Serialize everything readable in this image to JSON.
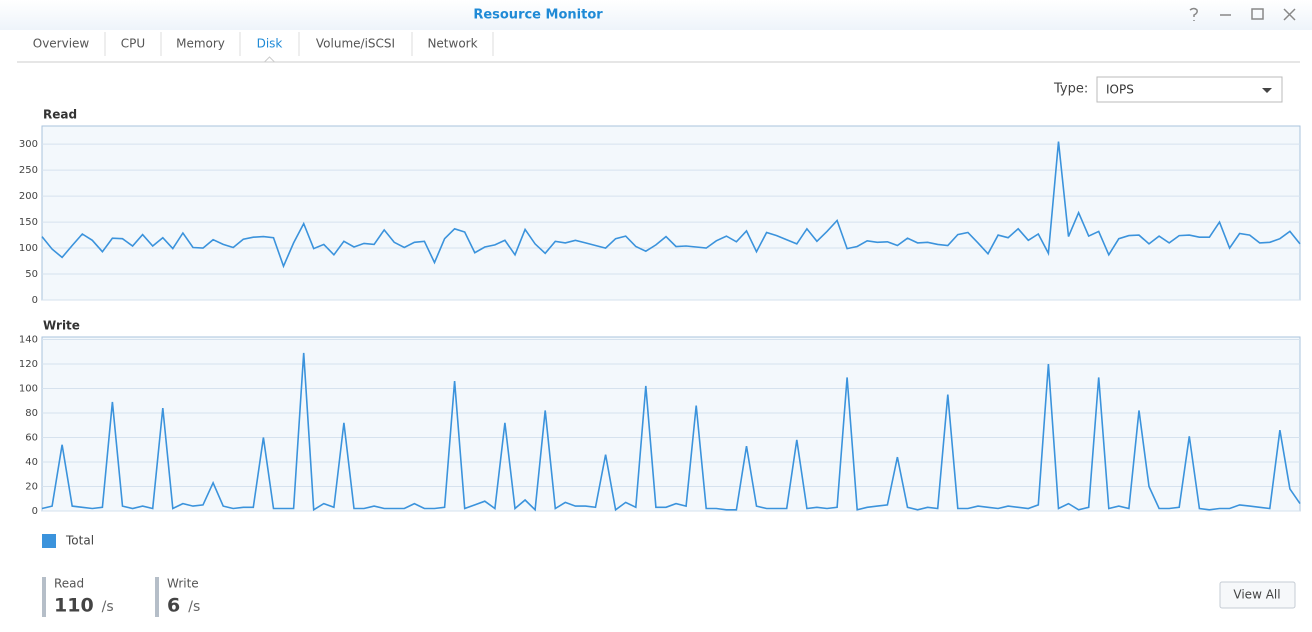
{
  "window": {
    "title": "Resource Monitor"
  },
  "tabs": [
    "Overview",
    "CPU",
    "Memory",
    "Disk",
    "Volume/iSCSI",
    "Network"
  ],
  "active_tab": 3,
  "type_selector": {
    "label": "Type:",
    "value": "IOPS"
  },
  "chart_data": [
    {
      "type": "line",
      "title": "Read",
      "ylim": [
        0,
        335
      ],
      "yticks": [
        0,
        50,
        100,
        150,
        200,
        250,
        300
      ],
      "grid": true,
      "series": [
        {
          "name": "Total",
          "color": "#3b93dc",
          "values": [
            122,
            98,
            82,
            105,
            127,
            115,
            93,
            119,
            118,
            104,
            126,
            104,
            120,
            99,
            129,
            101,
            100,
            116,
            107,
            101,
            117,
            121,
            122,
            120,
            65,
            110,
            147,
            99,
            107,
            87,
            113,
            102,
            109,
            107,
            135,
            111,
            101,
            111,
            113,
            72,
            118,
            137,
            131,
            91,
            102,
            106,
            115,
            87,
            136,
            108,
            90,
            113,
            110,
            115,
            110,
            105,
            100,
            118,
            123,
            103,
            94,
            106,
            122,
            103,
            104,
            102,
            100,
            114,
            123,
            112,
            133,
            93,
            130,
            124,
            116,
            108,
            137,
            113,
            132,
            153,
            99,
            103,
            114,
            111,
            112,
            105,
            119,
            110,
            111,
            107,
            105,
            126,
            130,
            110,
            89,
            125,
            120,
            137,
            115,
            127,
            90,
            305,
            122,
            168,
            123,
            132,
            87,
            118,
            124,
            125,
            108,
            123,
            110,
            124,
            125,
            121,
            121,
            150,
            100,
            128,
            125,
            110,
            111,
            118,
            132,
            108
          ]
        }
      ]
    },
    {
      "type": "line",
      "title": "Write",
      "ylim": [
        0,
        142
      ],
      "yticks": [
        0,
        20,
        40,
        60,
        80,
        100,
        120,
        140
      ],
      "grid": true,
      "series": [
        {
          "name": "Total",
          "color": "#3b93dc",
          "values": [
            2,
            4,
            54,
            4,
            3,
            2,
            3,
            89,
            4,
            2,
            4,
            2,
            84,
            2,
            6,
            4,
            5,
            23,
            4,
            2,
            3,
            3,
            60,
            2,
            2,
            2,
            129,
            1,
            6,
            3,
            72,
            2,
            2,
            4,
            2,
            2,
            2,
            6,
            2,
            2,
            3,
            106,
            2,
            5,
            8,
            2,
            72,
            2,
            9,
            1,
            82,
            2,
            7,
            4,
            4,
            3,
            46,
            1,
            7,
            3,
            102,
            3,
            3,
            6,
            4,
            86,
            2,
            2,
            1,
            1,
            53,
            4,
            2,
            2,
            2,
            58,
            2,
            3,
            2,
            3,
            109,
            1,
            3,
            4,
            5,
            44,
            3,
            1,
            3,
            2,
            95,
            2,
            2,
            4,
            3,
            2,
            4,
            3,
            2,
            5,
            120,
            2,
            6,
            1,
            3,
            109,
            2,
            4,
            2,
            82,
            20,
            2,
            2,
            3,
            61,
            2,
            1,
            2,
            2,
            5,
            4,
            3,
            2,
            66,
            18,
            6
          ]
        }
      ]
    }
  ],
  "stats": [
    {
      "label": "Read",
      "value": 110,
      "unit": "/s"
    },
    {
      "label": "Write",
      "value": 6,
      "unit": "/s"
    }
  ],
  "button": "View All"
}
